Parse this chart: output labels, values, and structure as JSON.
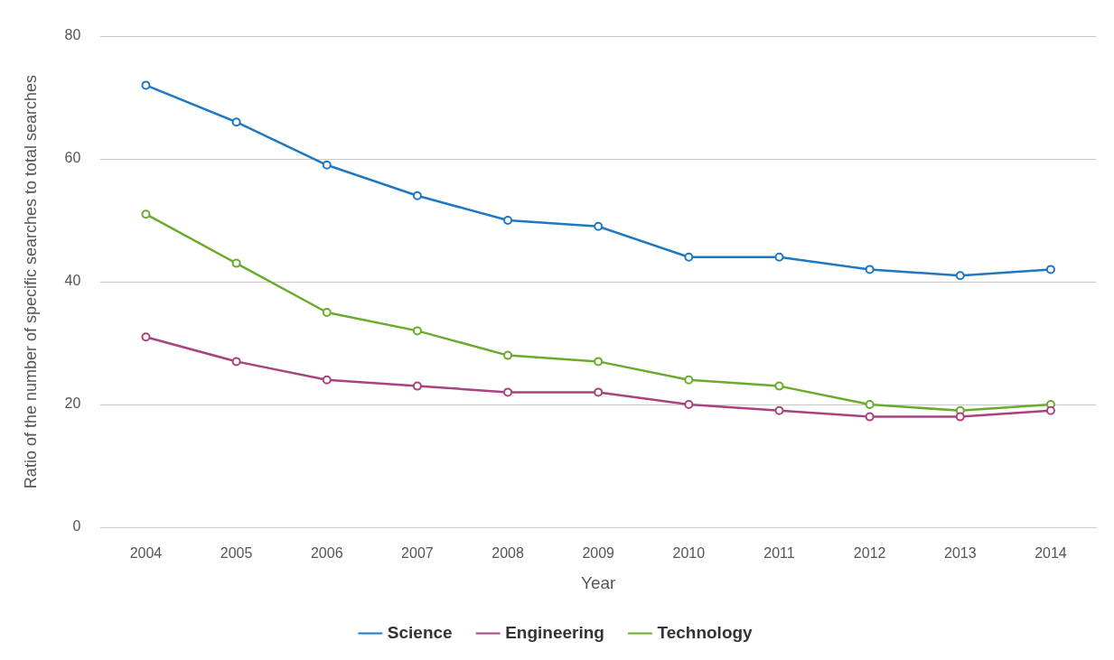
{
  "chart_data": {
    "type": "line",
    "xlabel": "Year",
    "ylabel": "Ratio of the number of specific searches to total searches",
    "categories": [
      "2004",
      "2005",
      "2006",
      "2007",
      "2008",
      "2009",
      "2010",
      "2011",
      "2012",
      "2013",
      "2014"
    ],
    "series": [
      {
        "name": "Science",
        "color": "#1f78c1",
        "values": [
          72,
          66,
          59,
          54,
          50,
          49,
          44,
          44,
          42,
          41,
          42
        ]
      },
      {
        "name": "Engineering",
        "color": "#a8437f",
        "values": [
          31,
          27,
          24,
          23,
          22,
          22,
          20,
          19,
          18,
          18,
          19
        ]
      },
      {
        "name": "Technology",
        "color": "#6aab2e",
        "values": [
          51,
          43,
          35,
          32,
          28,
          27,
          24,
          23,
          20,
          19,
          20
        ]
      }
    ],
    "ylim": [
      0,
      80
    ],
    "yticks": [
      0,
      20,
      40,
      60,
      80
    ],
    "grid": "y",
    "legend": "bottom",
    "marker": "circle",
    "line_style": "solid"
  }
}
